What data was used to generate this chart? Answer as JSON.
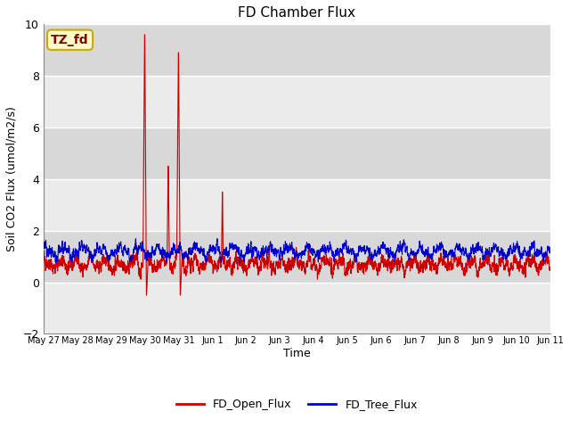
{
  "title": "FD Chamber Flux",
  "xlabel": "Time",
  "ylabel": "Soil CO2 Flux (umol/m2/s)",
  "ylim": [
    -2,
    10
  ],
  "yticks": [
    -2,
    0,
    2,
    4,
    6,
    8,
    10
  ],
  "annotation_text": "TZ_fd",
  "annotation_bbox_facecolor": "#ffffcc",
  "annotation_bbox_edgecolor": "#ccaa00",
  "annotation_text_color": "#880000",
  "bg_color_light": "#ebebeb",
  "bg_color_dark": "#d8d8d8",
  "line_red_color": "#cc0000",
  "line_blue_color": "#0000cc",
  "legend_labels": [
    "FD_Open_Flux",
    "FD_Tree_Flux"
  ],
  "n_points": 3360,
  "end_day": 15,
  "seed": 42
}
